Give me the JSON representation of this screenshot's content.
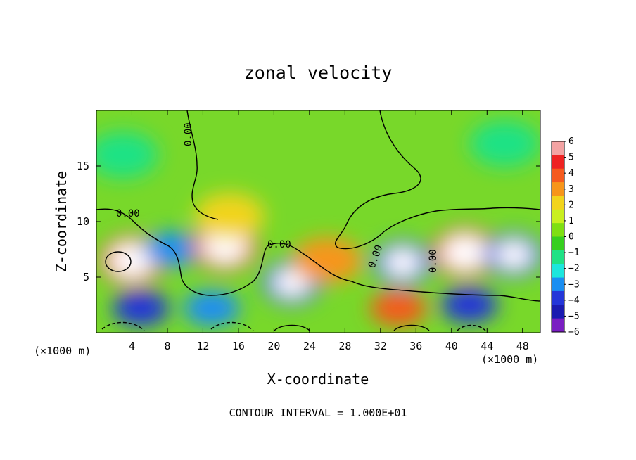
{
  "chart_data": {
    "type": "heatmap",
    "title": "zonal velocity",
    "xlabel": "X-coordinate",
    "ylabel": "Z-coordinate",
    "x_unit_left": "(×1000 m)",
    "x_unit_right": "(×1000 m)",
    "xlim": [
      0,
      50
    ],
    "ylim": [
      0,
      20
    ],
    "xticks": [
      4,
      8,
      12,
      16,
      20,
      24,
      28,
      32,
      36,
      40,
      44,
      48
    ],
    "yticks": [
      5,
      10,
      15
    ],
    "colorbar": {
      "min": -6,
      "max": 6,
      "ticks": [
        "6",
        "5",
        "4",
        "3",
        "2",
        "1",
        "0",
        "−1",
        "−2",
        "−3",
        "−4",
        "−5",
        "−6"
      ],
      "colors": [
        "#f3a3a3",
        "#ee2222",
        "#f55a1e",
        "#f7951a",
        "#f2d41c",
        "#c9ef20",
        "#7fdf12",
        "#36cf1e",
        "#1fe285",
        "#1ce6dd",
        "#1a8ef2",
        "#2436d8",
        "#1b1bb0",
        "#7a1ec2"
      ]
    },
    "contour_labels": [
      "0.00",
      "0.00",
      "0.00",
      "0.00",
      "0.00"
    ],
    "contour_interval_text": "CONTOUR INTERVAL = 1.000E+01",
    "features": [
      {
        "x": 4,
        "z": 6.5,
        "value": 7
      },
      {
        "x": 8.5,
        "z": 7.5,
        "value": -4
      },
      {
        "x": 14.5,
        "z": 7.8,
        "value": 7
      },
      {
        "x": 22,
        "z": 4.5,
        "value": -6
      },
      {
        "x": 26,
        "z": 6.5,
        "value": 3
      },
      {
        "x": 34.5,
        "z": 6.3,
        "value": -6
      },
      {
        "x": 41.5,
        "z": 7.2,
        "value": 7
      },
      {
        "x": 47,
        "z": 7.0,
        "value": -6
      },
      {
        "x": 5,
        "z": 2.2,
        "value": -5
      },
      {
        "x": 13,
        "z": 2.2,
        "value": -4
      },
      {
        "x": 34,
        "z": 2.2,
        "value": 4
      },
      {
        "x": 42,
        "z": 2.5,
        "value": -5
      },
      {
        "x": 3,
        "z": 16,
        "value": -2
      },
      {
        "x": 46,
        "z": 17,
        "value": -1.5
      },
      {
        "x": 15,
        "z": 10.5,
        "value": 2.5
      }
    ]
  }
}
